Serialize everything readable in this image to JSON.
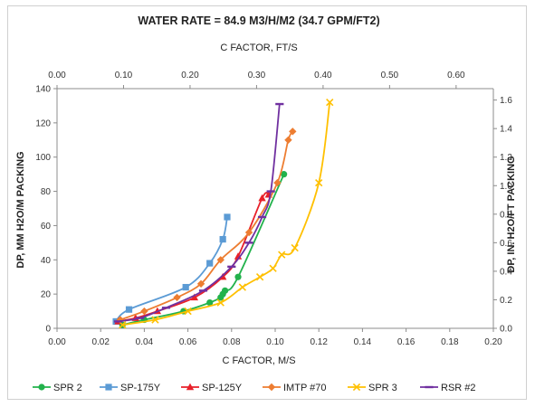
{
  "chart_data": {
    "type": "line",
    "title": "WATER RATE = 84.9 M3/H/M2 (34.7 GPM/FT2)",
    "xlabel": "C FACTOR, M/S",
    "x2label": "C FACTOR, FT/S",
    "ylabel": "DP, MM H2O/M PACKING",
    "y2label": "DP, IN. H2O/FT PACKING",
    "xlim": [
      0,
      0.2
    ],
    "ylim": [
      0,
      140
    ],
    "x2lim": [
      0,
      0.656
    ],
    "y2lim": [
      0,
      1.68
    ],
    "xticks": [
      "0.00",
      "0.02",
      "0.04",
      "0.06",
      "0.08",
      "0.10",
      "0.12",
      "0.14",
      "0.16",
      "0.18",
      "0.20"
    ],
    "yticks": [
      "0",
      "20",
      "40",
      "60",
      "80",
      "100",
      "120",
      "140"
    ],
    "x2ticks": [
      "0.00",
      "0.10",
      "0.20",
      "0.30",
      "0.40",
      "0.50",
      "0.60"
    ],
    "y2ticks": [
      "0.0",
      "0.2",
      "0.4",
      "0.6",
      "0.8",
      "1.0",
      "1.2",
      "1.4",
      "1.6"
    ],
    "legend_position": "bottom",
    "grid": false,
    "series": [
      {
        "name": "SPR 2",
        "color": "#22b24c",
        "marker": "circle",
        "x": [
          0.03,
          0.04,
          0.058,
          0.07,
          0.075,
          0.076,
          0.077,
          0.083,
          0.104
        ],
        "y": [
          2,
          5,
          10,
          15,
          18,
          20,
          22,
          30,
          90
        ]
      },
      {
        "name": "SP-175Y",
        "color": "#5b9bd5",
        "marker": "square",
        "x": [
          0.027,
          0.033,
          0.059,
          0.07,
          0.076,
          0.078
        ],
        "y": [
          4,
          11,
          24,
          38,
          52,
          65
        ]
      },
      {
        "name": "SP-125Y",
        "color": "#e8202a",
        "marker": "triangle",
        "x": [
          0.028,
          0.036,
          0.046,
          0.063,
          0.076,
          0.083,
          0.094,
          0.097
        ],
        "y": [
          4,
          6,
          10,
          18,
          30,
          42,
          76,
          78
        ]
      },
      {
        "name": "IMTP #70",
        "color": "#ed7d31",
        "marker": "diamond",
        "x": [
          0.029,
          0.04,
          0.055,
          0.066,
          0.075,
          0.088,
          0.101,
          0.106,
          0.108
        ],
        "y": [
          5,
          10,
          18,
          26,
          40,
          56,
          85,
          110,
          115
        ]
      },
      {
        "name": "SPR 3",
        "color": "#ffc000",
        "marker": "x",
        "x": [
          0.03,
          0.045,
          0.06,
          0.075,
          0.085,
          0.093,
          0.099,
          0.103,
          0.109,
          0.12,
          0.125
        ],
        "y": [
          2,
          5,
          10,
          15,
          24,
          30,
          35,
          43,
          47,
          85,
          132
        ]
      },
      {
        "name": "RSR #2",
        "color": "#7030a0",
        "marker": "dash",
        "x": [
          0.028,
          0.038,
          0.05,
          0.067,
          0.08,
          0.088,
          0.094,
          0.098,
          0.102
        ],
        "y": [
          4,
          6,
          12,
          22,
          36,
          50,
          65,
          80,
          131
        ]
      }
    ]
  }
}
